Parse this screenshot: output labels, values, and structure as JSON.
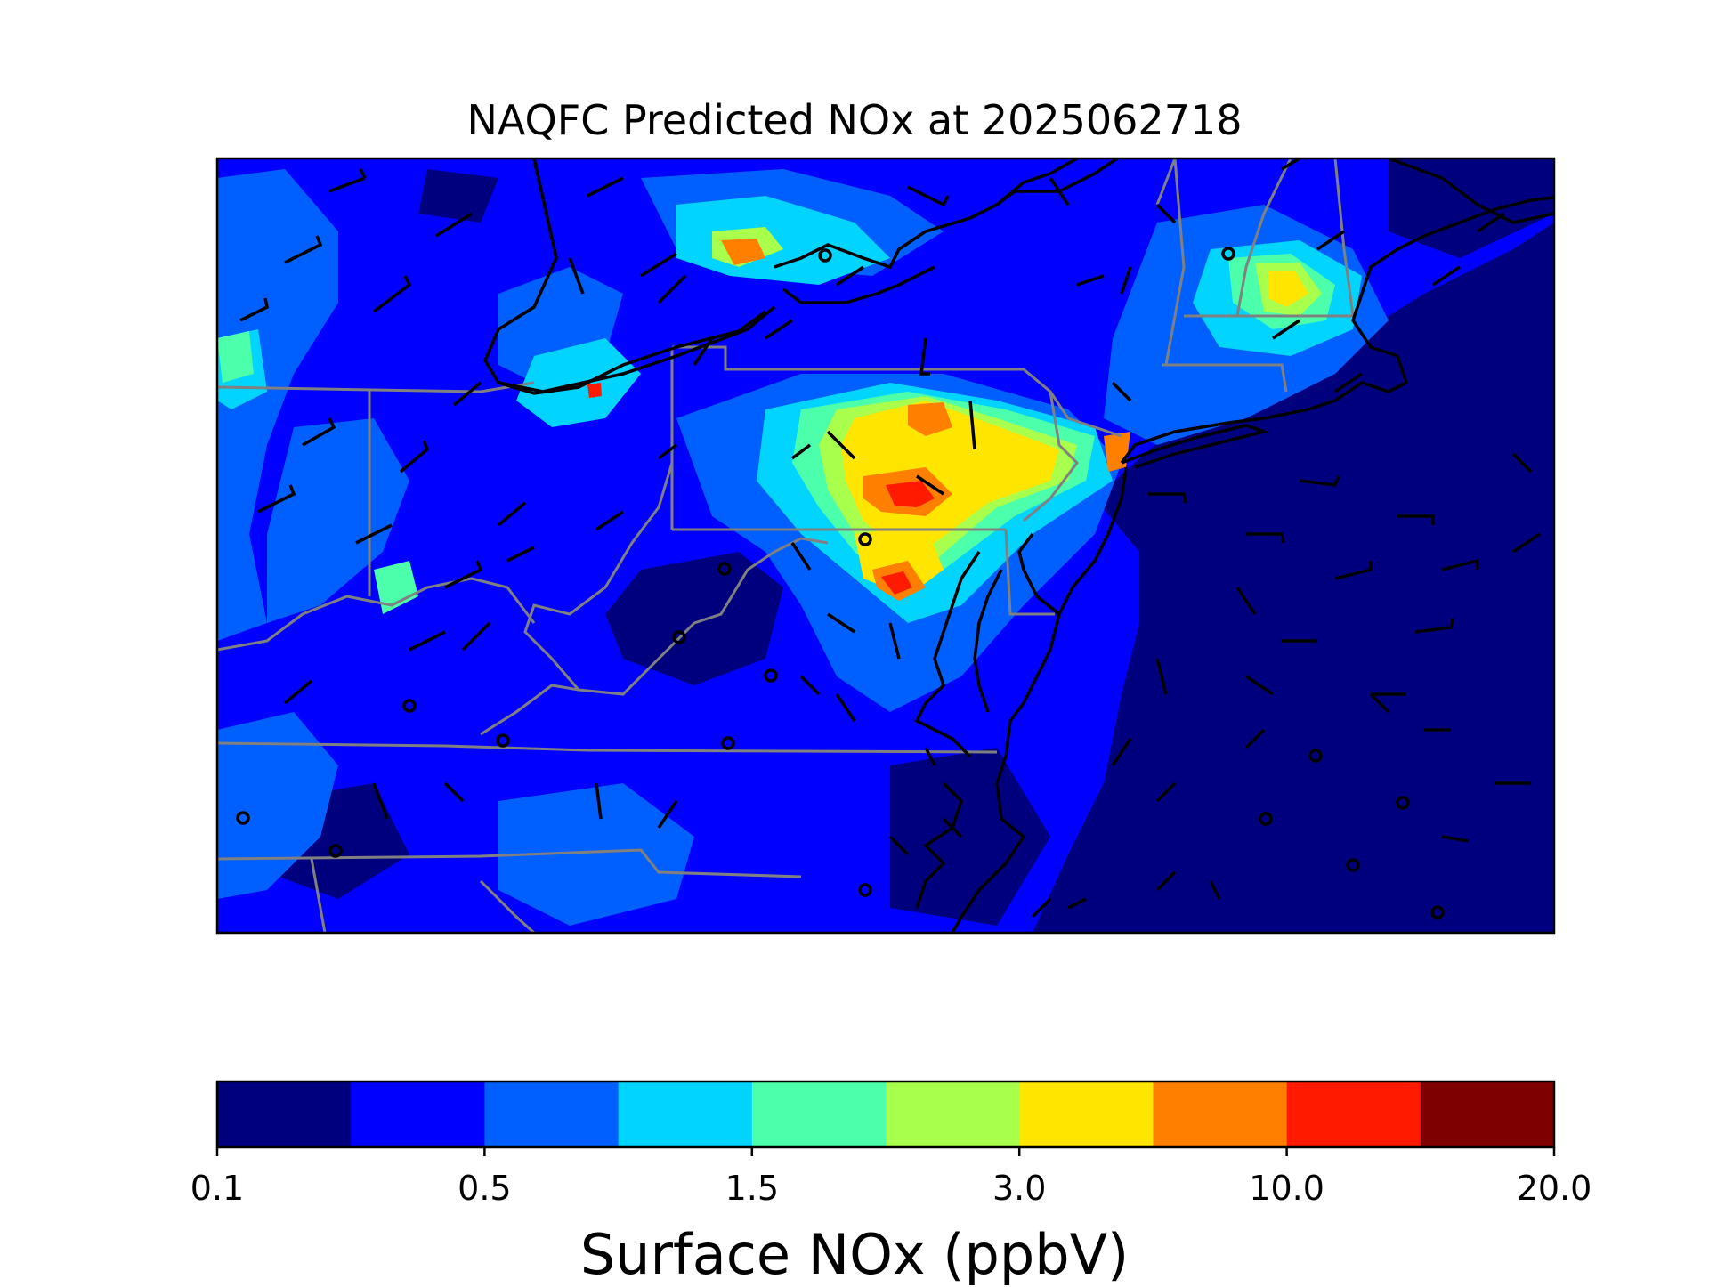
{
  "title": "NAQFC Predicted NOx at 2025062718",
  "colorbar": {
    "label": "Surface NOx (ppbV)",
    "tick_labels": [
      "0.1",
      "0.5",
      "1.5",
      "3.0",
      "10.0",
      "20.0"
    ],
    "colors": [
      "#00007f",
      "#0000ff",
      "#0060ff",
      "#00d4ff",
      "#4cffaa",
      "#a8ff4c",
      "#ffe500",
      "#ff7f00",
      "#ff1a00",
      "#7f0000"
    ]
  },
  "map": {
    "variable": "Surface NOx",
    "units": "ppbV",
    "region": "Mid-Atlantic / Northeast United States",
    "overlays": [
      "state-borders",
      "coastlines",
      "wind-barbs",
      "calm-wind-circles"
    ],
    "colors": {
      "state_border": "#808080",
      "coastline": "#000000",
      "wind_barb": "#000000",
      "frame": "#000000"
    }
  }
}
